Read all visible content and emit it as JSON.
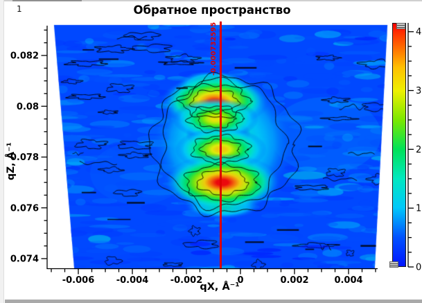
{
  "window": {
    "page_label": "1"
  },
  "chart_data": {
    "type": "heatmap",
    "title": "Обратное пространство",
    "xlabel": "qX, Å⁻¹",
    "ylabel": "qZ, Å⁻¹",
    "x_ticks": [
      -0.006,
      -0.004,
      -0.002,
      0,
      0.002,
      0.004
    ],
    "x_tick_labels": [
      "-0.006",
      "-0.004",
      "-0.002",
      "0",
      "0.002",
      "0.004"
    ],
    "x_minor_step": 0.0005,
    "y_ticks": [
      0.074,
      0.076,
      0.078,
      0.08,
      0.082
    ],
    "y_tick_labels": [
      "0.074",
      "0.076",
      "0.078",
      "0.08",
      "0.082"
    ],
    "y_minor_step": 0.0005,
    "xlim": [
      -0.00715,
      0.00508
    ],
    "ylim": [
      0.0736,
      0.0832
    ],
    "grid": false,
    "legend": "colorbar-right",
    "data_region": {
      "corners_qx_qz": [
        [
          -0.0069,
          0.0832
        ],
        [
          0.00544,
          0.0832
        ],
        [
          0.00497,
          0.0736
        ],
        [
          -0.00615,
          0.0736
        ]
      ]
    },
    "marker_line": {
      "qx": -0.000732595,
      "label": "-0.000732595",
      "color": "#dc0000"
    },
    "peaks": [
      {
        "qx": -0.00095,
        "qz": 0.0802,
        "intensity": 3.9
      },
      {
        "qx": -0.00092,
        "qz": 0.0795,
        "intensity": 3.1
      },
      {
        "qx": -0.00072,
        "qz": 0.0783,
        "intensity": 3.3
      },
      {
        "qx": -0.00067,
        "qz": 0.077,
        "intensity": 4.2
      }
    ],
    "background_level": 0.5,
    "colorbar": {
      "min": 0,
      "max_display": 4.15,
      "ticks": [
        0,
        1,
        2,
        3,
        4
      ],
      "tick_labels": [
        "0",
        "1",
        "2",
        "3",
        "4"
      ],
      "minor_step": 0.25,
      "colormap_stops": [
        [
          0,
          "#0015ff"
        ],
        [
          0.5,
          "#0052ff"
        ],
        [
          1,
          "#00c8fa"
        ],
        [
          1.5,
          "#00e8c0"
        ],
        [
          2,
          "#00e258"
        ],
        [
          2.5,
          "#7ae800"
        ],
        [
          3,
          "#eef000"
        ],
        [
          3.4,
          "#ffc000"
        ],
        [
          3.7,
          "#ff7600"
        ],
        [
          4,
          "#ff2e00"
        ],
        [
          4.15,
          "#f80000"
        ]
      ]
    }
  }
}
